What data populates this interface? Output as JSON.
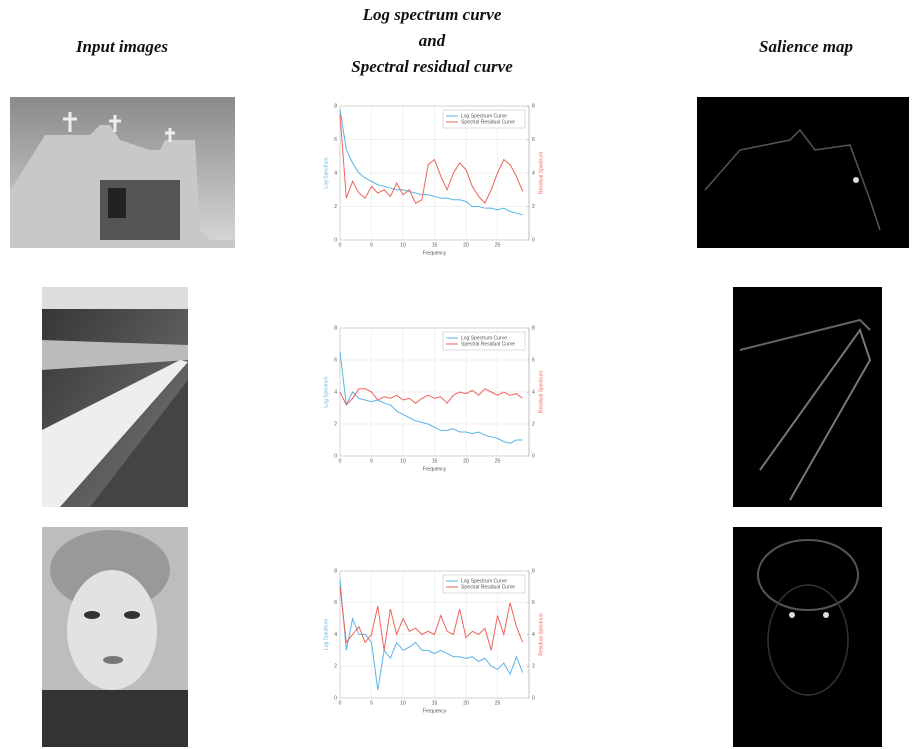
{
  "headers": {
    "input": "Input images",
    "curves": [
      "Log spectrum curve",
      "and",
      "Spectral residual curve"
    ],
    "salience": "Salience map"
  },
  "chart_data": [
    {
      "type": "line",
      "x": [
        0,
        1,
        2,
        3,
        4,
        5,
        6,
        7,
        8,
        9,
        10,
        11,
        12,
        13,
        14,
        15,
        16,
        17,
        18,
        19,
        20,
        21,
        22,
        23,
        24,
        25,
        26,
        27,
        28,
        29
      ],
      "xlabel": "Frequency",
      "ylabel": "Log Spectrum",
      "y2label": "Residual Spectrum",
      "xlim": [
        0,
        30
      ],
      "xticks": [
        0,
        5,
        10,
        15,
        20,
        25
      ],
      "ylim": [
        0,
        8
      ],
      "yticks": [
        0,
        2,
        4,
        6,
        8
      ],
      "y2lim": [
        0,
        8
      ],
      "y2ticks": [
        0,
        2,
        4,
        6,
        8
      ],
      "grid": true,
      "legend": "upper-right",
      "series": [
        {
          "name": "Log Spectrum Curve",
          "color": "#5ab4e5",
          "values": [
            7.8,
            5.4,
            4.6,
            4.0,
            3.7,
            3.5,
            3.3,
            3.2,
            3.1,
            3.0,
            3.0,
            2.9,
            2.8,
            2.7,
            2.7,
            2.6,
            2.5,
            2.5,
            2.4,
            2.4,
            2.3,
            2.0,
            2.0,
            1.9,
            1.9,
            1.8,
            1.9,
            1.7,
            1.6,
            1.5
          ]
        },
        {
          "name": "Spectral Residual Curve",
          "color": "#f0625a",
          "axis": "y2",
          "values": [
            7.5,
            2.5,
            3.5,
            2.8,
            2.5,
            3.2,
            2.8,
            3.0,
            2.6,
            3.4,
            2.7,
            3.0,
            2.2,
            2.4,
            4.5,
            4.8,
            3.8,
            3.0,
            4.0,
            4.6,
            4.2,
            3.2,
            2.6,
            2.2,
            3.0,
            4.0,
            4.8,
            4.5,
            3.8,
            2.9
          ]
        }
      ]
    },
    {
      "type": "line",
      "x": [
        0,
        1,
        2,
        3,
        4,
        5,
        6,
        7,
        8,
        9,
        10,
        11,
        12,
        13,
        14,
        15,
        16,
        17,
        18,
        19,
        20,
        21,
        22,
        23,
        24,
        25,
        26,
        27,
        28,
        29
      ],
      "xlabel": "Frequency",
      "ylabel": "Log Spectrum",
      "y2label": "Residual Spectrum",
      "xlim": [
        0,
        30
      ],
      "xticks": [
        0,
        5,
        10,
        15,
        20,
        25
      ],
      "ylim": [
        0,
        8
      ],
      "yticks": [
        0,
        2,
        4,
        6,
        8
      ],
      "y2lim": [
        0,
        8
      ],
      "y2ticks": [
        0,
        2,
        4,
        6,
        8
      ],
      "grid": true,
      "legend": "upper-right",
      "series": [
        {
          "name": "Log Spectrum Curve",
          "color": "#5ab4e5",
          "values": [
            6.5,
            3.2,
            4.0,
            3.6,
            3.5,
            3.4,
            3.5,
            3.3,
            3.2,
            2.8,
            2.6,
            2.4,
            2.2,
            2.1,
            2.0,
            1.8,
            1.6,
            1.6,
            1.7,
            1.5,
            1.5,
            1.4,
            1.5,
            1.3,
            1.2,
            1.1,
            0.9,
            0.8,
            1.0,
            1.0
          ]
        },
        {
          "name": "Spectral Residual Curve",
          "color": "#f0625a",
          "axis": "y2",
          "values": [
            4.0,
            3.2,
            3.6,
            4.2,
            4.2,
            4.0,
            3.5,
            3.7,
            3.6,
            3.8,
            3.5,
            3.6,
            3.3,
            3.6,
            3.8,
            3.6,
            3.7,
            3.3,
            3.8,
            4.0,
            3.9,
            4.1,
            3.8,
            4.2,
            4.0,
            3.8,
            4.0,
            3.8,
            3.9,
            3.6
          ]
        }
      ]
    },
    {
      "type": "line",
      "x": [
        0,
        1,
        2,
        3,
        4,
        5,
        6,
        7,
        8,
        9,
        10,
        11,
        12,
        13,
        14,
        15,
        16,
        17,
        18,
        19,
        20,
        21,
        22,
        23,
        24,
        25,
        26,
        27,
        28,
        29
      ],
      "xlabel": "Frequency",
      "ylabel": "Log Spectrum",
      "y2label": "Residual Spectrum",
      "xlim": [
        0,
        30
      ],
      "xticks": [
        0,
        5,
        10,
        15,
        20,
        25
      ],
      "ylim": [
        0,
        8
      ],
      "yticks": [
        0,
        2,
        4,
        6,
        8
      ],
      "y2lim": [
        0,
        8
      ],
      "y2ticks": [
        0,
        2,
        4,
        6,
        8
      ],
      "grid": true,
      "legend": "upper-right",
      "series": [
        {
          "name": "Log Spectrum Curve",
          "color": "#5ab4e5",
          "values": [
            7.5,
            3.0,
            5.0,
            4.0,
            4.0,
            3.5,
            0.5,
            3.0,
            2.5,
            3.5,
            3.0,
            3.2,
            3.5,
            3.0,
            3.0,
            2.8,
            3.0,
            2.8,
            2.6,
            2.6,
            2.5,
            2.6,
            2.3,
            2.5,
            2.0,
            1.8,
            2.2,
            1.5,
            2.6,
            1.6
          ]
        },
        {
          "name": "Spectral Residual Curve",
          "color": "#f0625a",
          "axis": "y2",
          "values": [
            7.0,
            3.5,
            4.0,
            4.5,
            3.5,
            4.0,
            5.8,
            3.0,
            5.6,
            4.0,
            5.0,
            4.2,
            4.4,
            4.0,
            4.2,
            4.0,
            5.2,
            4.2,
            4.0,
            5.6,
            3.8,
            4.2,
            4.0,
            4.4,
            3.0,
            5.2,
            4.0,
            6.0,
            4.5,
            3.5
          ]
        }
      ]
    }
  ]
}
